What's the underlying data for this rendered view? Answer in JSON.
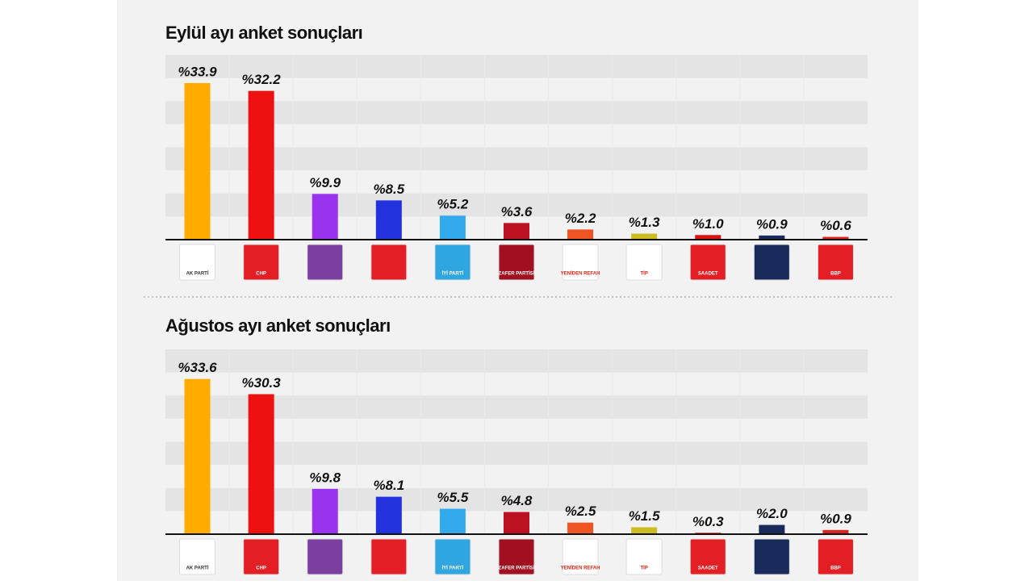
{
  "chart_data": [
    {
      "type": "bar",
      "title": "Eylül ayı anket sonuçları",
      "categories": [
        "AK PARTİ",
        "CHP",
        null,
        null,
        "İYİ PARTİ",
        "ZAFER PARTİSİ",
        "YENİDEN REFAH",
        "TİP",
        "SAADET",
        null,
        "BBP"
      ],
      "values": [
        33.9,
        32.2,
        9.9,
        8.5,
        5.2,
        3.6,
        2.2,
        1.3,
        1.0,
        0.9,
        0.6
      ],
      "value_labels": [
        "%33.9",
        "%32.2",
        "%9.9",
        "%8.5",
        "%5.2",
        "%3.6",
        "%2.2",
        "%1.3",
        "%1.0",
        "%0.9",
        "%0.6"
      ],
      "colors": [
        "#ffab00",
        "#ee1111",
        "#9933ee",
        "#2233dd",
        "#33aaee",
        "#bb1122",
        "#ee5522",
        "#ccbb22",
        "#dd1111",
        "#1a2a5a",
        "#dd2222"
      ],
      "ylim": [
        0,
        40
      ]
    },
    {
      "type": "bar",
      "title": "Ağustos ayı anket sonuçları",
      "categories": [
        "AK PARTİ",
        "CHP",
        null,
        null,
        "İYİ PARTİ",
        "ZAFER PARTİSİ",
        "YENİDEN REFAH",
        "TİP",
        "SAADET",
        null,
        "BBP"
      ],
      "values": [
        33.6,
        30.3,
        9.8,
        8.1,
        5.5,
        4.8,
        2.5,
        1.5,
        0.3,
        2.0,
        0.9
      ],
      "value_labels": [
        "%33.6",
        "%30.3",
        "%9.8",
        "%8.1",
        "%5.5",
        "%4.8",
        "%2.5",
        "%1.5",
        "%0.3",
        "%2.0",
        "%0.9"
      ],
      "colors": [
        "#ffab00",
        "#ee1111",
        "#9933ee",
        "#2233dd",
        "#33aaee",
        "#bb1122",
        "#ee5522",
        "#ccbb22",
        "#dd1111",
        "#1a2a5a",
        "#dd2222"
      ],
      "ylim": [
        0,
        40
      ]
    }
  ]
}
